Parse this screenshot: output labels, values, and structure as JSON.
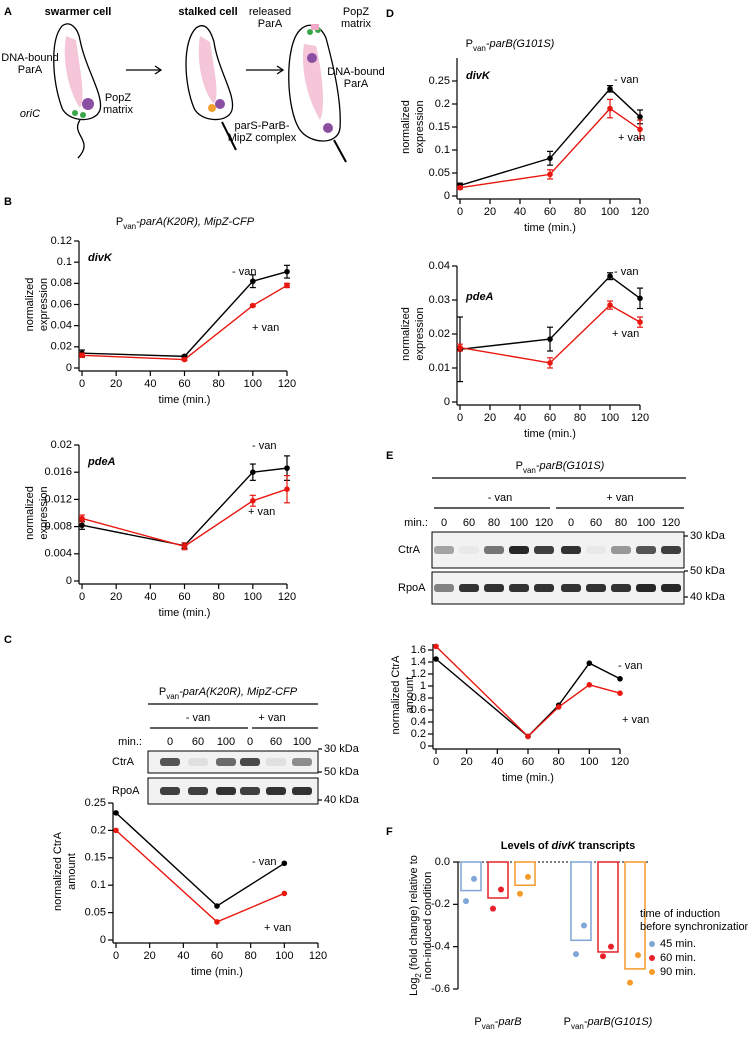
{
  "panel_labels": [
    "A",
    "B",
    "C",
    "D",
    "E",
    "F"
  ],
  "diagram": {
    "stages": [
      "swarmer cell",
      "stalked cell"
    ],
    "labels": {
      "dna_bound_1": [
        "DNA-bound",
        "ParA"
      ],
      "oric": "oriC",
      "popz_1": [
        "PopZ",
        "matrix"
      ],
      "pars": [
        "parS-ParB-",
        "MipZ complex"
      ],
      "released": [
        "released",
        "ParA"
      ],
      "popz_2": [
        "PopZ",
        "matrix"
      ],
      "dna_bound_2": [
        "DNA-bound",
        "ParA"
      ]
    }
  },
  "headers": [
    {
      "p": "P",
      "sub": "van",
      "rest": "-parA(K20R), MipZ-CFP"
    },
    {
      "p": "P",
      "sub": "van",
      "rest": "-parA(K20R), MipZ-CFP"
    },
    {
      "p": "P",
      "sub": "van",
      "rest": "-parB(G101S)"
    },
    {
      "p": "P",
      "sub": "van",
      "rest": "-parB(G101S)"
    }
  ],
  "blots": [
    {
      "conditions": [
        "- van",
        "+ van"
      ],
      "min_label": "min.:",
      "times": [
        0,
        60,
        100,
        0,
        60,
        100
      ],
      "proteins": [
        "CtrA",
        "RpoA"
      ],
      "markers": [
        "30 kDa",
        "50 kDa",
        "40 kDa"
      ]
    },
    {
      "conditions": [
        "- van",
        "+ van"
      ],
      "min_label": "min.:",
      "times": [
        0,
        60,
        80,
        100,
        120,
        0,
        60,
        80,
        100,
        120
      ],
      "proteins": [
        "CtrA",
        "RpoA"
      ],
      "markers": [
        "30 kDa",
        "50 kDa",
        "40 kDa"
      ]
    }
  ],
  "chart_data": [
    {
      "type": "line",
      "annotation": "divK",
      "xlabel": "time (min.)",
      "ylabel": [
        "normalized",
        "expression"
      ],
      "x": [
        0,
        60,
        100,
        120
      ],
      "xlim": [
        0,
        120
      ],
      "xticks": [
        0,
        20,
        40,
        60,
        80,
        100,
        120
      ],
      "ylim": [
        0,
        0.12
      ],
      "yticks": [
        0,
        0.02,
        0.04,
        0.06,
        0.08,
        0.1,
        0.12
      ],
      "series": [
        {
          "name": "- van",
          "color": "#000000",
          "values": [
            0.014,
            0.011,
            0.082,
            0.091
          ],
          "errors": [
            0.003,
            0.001,
            0.006,
            0.006
          ]
        },
        {
          "name": "+ van",
          "color": "#e8170f",
          "values": [
            0.012,
            0.008,
            0.059,
            0.078
          ],
          "errors": [
            0.002,
            0.001,
            0.001,
            0.002
          ]
        }
      ]
    },
    {
      "type": "line",
      "annotation": "pdeA",
      "xlabel": "time (min.)",
      "ylabel": [
        "normalized",
        "expression"
      ],
      "x": [
        0,
        60,
        100,
        120
      ],
      "xlim": [
        0,
        120
      ],
      "xticks": [
        0,
        20,
        40,
        60,
        80,
        100,
        120
      ],
      "ylim": [
        0,
        0.02
      ],
      "yticks": [
        0,
        0.004,
        0.008,
        0.012,
        0.016,
        0.02
      ],
      "series": [
        {
          "name": "- van",
          "color": "#000000",
          "values": [
            0.0082,
            0.0052,
            0.016,
            0.0166
          ],
          "errors": [
            0.0006,
            0.0004,
            0.0012,
            0.0018
          ]
        },
        {
          "name": "+ van",
          "color": "#e8170f",
          "values": [
            0.0092,
            0.0051,
            0.0118,
            0.0135
          ],
          "errors": [
            0.0005,
            0.0005,
            0.0008,
            0.002
          ]
        }
      ]
    },
    {
      "type": "line",
      "xlabel": "time (min.)",
      "ylabel": [
        "normalized CtrA",
        "amount"
      ],
      "x": [
        0,
        60,
        100
      ],
      "xlim": [
        0,
        120
      ],
      "xticks": [
        0,
        20,
        40,
        60,
        80,
        100,
        120
      ],
      "ylim": [
        0,
        0.25
      ],
      "yticks": [
        0,
        0.05,
        0.1,
        0.15,
        0.2,
        0.25
      ],
      "series": [
        {
          "name": "- van",
          "color": "#000000",
          "values": [
            0.232,
            0.062,
            0.14
          ]
        },
        {
          "name": "+ van",
          "color": "#e8170f",
          "values": [
            0.2,
            0.033,
            0.085
          ]
        }
      ]
    },
    {
      "type": "line",
      "annotation": "divK",
      "xlabel": "time (min.)",
      "ylabel": [
        "normalized",
        "expression"
      ],
      "x": [
        0,
        60,
        100,
        120
      ],
      "xlim": [
        0,
        120
      ],
      "xticks": [
        0,
        20,
        40,
        60,
        80,
        100,
        120
      ],
      "ylim": [
        0,
        0.3
      ],
      "yticks": [
        0,
        0.05,
        0.1,
        0.15,
        0.2,
        0.25
      ],
      "series": [
        {
          "name": "- van",
          "color": "#000000",
          "values": [
            0.023,
            0.082,
            0.233,
            0.172
          ],
          "errors": [
            0.005,
            0.015,
            0.007,
            0.015
          ]
        },
        {
          "name": "+ van",
          "color": "#e8170f",
          "values": [
            0.018,
            0.047,
            0.19,
            0.145
          ],
          "errors": [
            0.003,
            0.01,
            0.02,
            0.02
          ]
        }
      ]
    },
    {
      "type": "line",
      "annotation": "pdeA",
      "xlabel": "time (min.)",
      "ylabel": [
        "normalized",
        "expression"
      ],
      "x": [
        0,
        60,
        100,
        120
      ],
      "xlim": [
        0,
        120
      ],
      "xticks": [
        0,
        20,
        40,
        60,
        80,
        100,
        120
      ],
      "ylim": [
        0,
        0.04
      ],
      "yticks": [
        0,
        0.01,
        0.02,
        0.03,
        0.04
      ],
      "series": [
        {
          "name": "- van",
          "color": "#000000",
          "values": [
            0.0155,
            0.0185,
            0.037,
            0.0305
          ],
          "errors": [
            0.0095,
            0.0035,
            0.001,
            0.003
          ]
        },
        {
          "name": "+ van",
          "color": "#e8170f",
          "values": [
            0.016,
            0.0115,
            0.0285,
            0.0235
          ],
          "errors": [
            0.001,
            0.0015,
            0.0012,
            0.0015
          ]
        }
      ]
    },
    {
      "type": "line",
      "xlabel": "time (min.)",
      "ylabel": [
        "normalized CtrA",
        "amount"
      ],
      "x": [
        0,
        60,
        80,
        100,
        120
      ],
      "xlim": [
        0,
        120
      ],
      "xticks": [
        0,
        20,
        40,
        60,
        80,
        100,
        120
      ],
      "ylim": [
        0,
        1.7
      ],
      "yticks": [
        0,
        0.2,
        0.4,
        0.6,
        0.8,
        1,
        1.2,
        1.4,
        1.6
      ],
      "series": [
        {
          "name": "- van",
          "color": "#000000",
          "values": [
            1.45,
            0.16,
            0.68,
            1.38,
            1.12
          ]
        },
        {
          "name": "+ van",
          "color": "#e8170f",
          "values": [
            1.66,
            0.16,
            0.65,
            1.02,
            0.88
          ]
        }
      ]
    },
    {
      "type": "bar",
      "title": {
        "a": "Levels of ",
        "b": "divK",
        "c": " transcripts"
      },
      "ylabel": {
        "a": "Log",
        "sub": "2",
        "b": " (fold change) relative to",
        "line2": "non-induced condition"
      },
      "categories": [
        {
          "p": "P",
          "sub": "van",
          "rest": "-parB"
        },
        {
          "p": "P",
          "sub": "van",
          "rest": "-parB(G101S)"
        }
      ],
      "ylim": [
        -0.6,
        0
      ],
      "yticks": [
        -0.6,
        -0.4,
        -0.2,
        {
          "value": 0,
          "label": "0.0"
        }
      ],
      "legend_title": [
        "time of induction",
        "before synchronization"
      ],
      "series": [
        {
          "name": "45 min.",
          "color": "#7ea6d6",
          "values": [
            -0.135,
            -0.37
          ],
          "replicates": [
            [
              -0.08,
              -0.185
            ],
            [
              -0.3,
              -0.435
            ]
          ]
        },
        {
          "name": "60 min.",
          "color": "#e8202a",
          "values": [
            -0.17,
            -0.425
          ],
          "replicates": [
            [
              -0.13,
              -0.22
            ],
            [
              -0.4,
              -0.445
            ]
          ]
        },
        {
          "name": "90 min.",
          "color": "#f39a2a",
          "values": [
            -0.11,
            -0.505
          ],
          "replicates": [
            [
              -0.07,
              -0.15
            ],
            [
              -0.44,
              -0.57
            ]
          ]
        }
      ]
    }
  ]
}
